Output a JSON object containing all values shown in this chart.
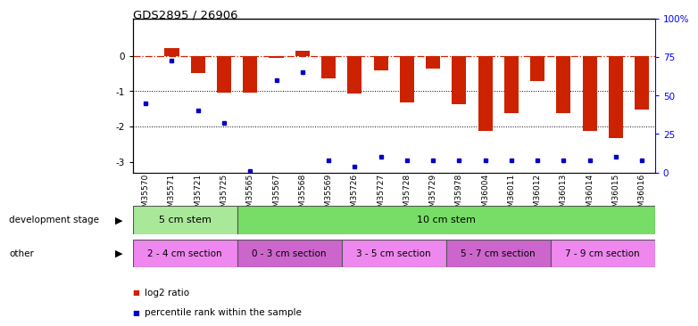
{
  "title": "GDS2895 / 26906",
  "samples": [
    "GSM35570",
    "GSM35571",
    "GSM35721",
    "GSM35725",
    "GSM35565",
    "GSM35567",
    "GSM35568",
    "GSM35569",
    "GSM35726",
    "GSM35727",
    "GSM35728",
    "GSM35729",
    "GSM35978",
    "GSM36004",
    "GSM36011",
    "GSM36012",
    "GSM36013",
    "GSM36014",
    "GSM36015",
    "GSM36016"
  ],
  "log2_values": [
    0.0,
    0.22,
    -0.48,
    -1.05,
    -1.05,
    -0.07,
    0.13,
    -0.63,
    -1.08,
    -0.42,
    -1.33,
    -0.37,
    -1.38,
    -2.12,
    -1.62,
    -0.72,
    -1.62,
    -2.13,
    -2.32,
    -1.52
  ],
  "percentile_values": [
    45,
    73,
    40,
    32,
    1,
    60,
    65,
    8,
    4,
    10,
    8,
    8,
    8,
    8,
    8,
    8,
    8,
    8,
    10,
    8
  ],
  "bar_color": "#cc2200",
  "dot_color": "#0000cc",
  "ylim_left": [
    -3.3,
    1.05
  ],
  "ylim_right": [
    0,
    100
  ],
  "dev_stage_groups": [
    {
      "label": "5 cm stem",
      "start": 0,
      "end": 4,
      "color": "#aae899"
    },
    {
      "label": "10 cm stem",
      "start": 4,
      "end": 20,
      "color": "#77dd66"
    }
  ],
  "other_groups": [
    {
      "label": "2 - 4 cm section",
      "start": 0,
      "end": 4,
      "color": "#ee88ee"
    },
    {
      "label": "0 - 3 cm section",
      "start": 4,
      "end": 8,
      "color": "#cc66cc"
    },
    {
      "label": "3 - 5 cm section",
      "start": 8,
      "end": 12,
      "color": "#ee88ee"
    },
    {
      "label": "5 - 7 cm section",
      "start": 12,
      "end": 16,
      "color": "#cc66cc"
    },
    {
      "label": "7 - 9 cm section",
      "start": 16,
      "end": 20,
      "color": "#ee88ee"
    }
  ],
  "background_color": "#ffffff"
}
